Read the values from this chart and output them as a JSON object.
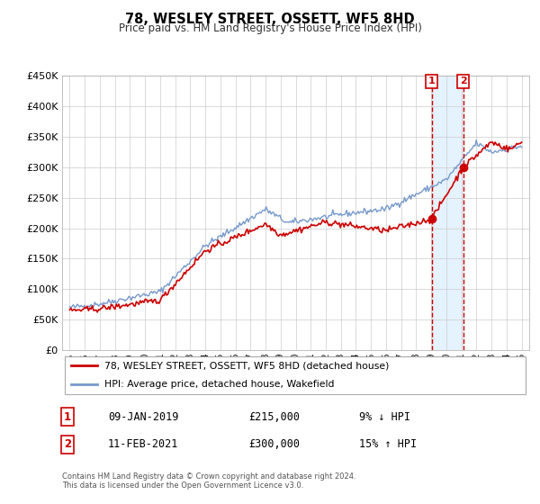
{
  "title": "78, WESLEY STREET, OSSETT, WF5 8HD",
  "subtitle": "Price paid vs. HM Land Registry's House Price Index (HPI)",
  "legend_line1": "78, WESLEY STREET, OSSETT, WF5 8HD (detached house)",
  "legend_line2": "HPI: Average price, detached house, Wakefield",
  "red_color": "#cc0000",
  "blue_color": "#7799cc",
  "annotation_bg": "#ddeeff",
  "footnote1": "Contains HM Land Registry data © Crown copyright and database right 2024.",
  "footnote2": "This data is licensed under the Open Government Licence v3.0.",
  "marker1_label": "1",
  "marker1_date": "09-JAN-2019",
  "marker1_price": "£215,000",
  "marker1_hpi": "9% ↓ HPI",
  "marker2_label": "2",
  "marker2_date": "11-FEB-2021",
  "marker2_price": "£300,000",
  "marker2_hpi": "15% ↑ HPI",
  "marker1_x": 2019.03,
  "marker1_y": 215000,
  "marker2_x": 2021.12,
  "marker2_y": 300000,
  "ylim": [
    0,
    450000
  ],
  "xlim": [
    1994.5,
    2025.5
  ]
}
